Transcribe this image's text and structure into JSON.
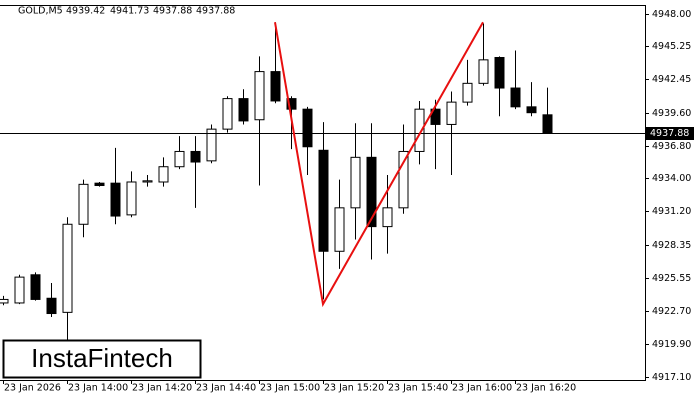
{
  "chart_data": {
    "type": "candlestick",
    "symbol": "GOLD,M5",
    "watermark": "InstaFintech",
    "categories": [
      "23 Jan 2026",
      null,
      null,
      null,
      "23 Jan 14:00",
      null,
      null,
      null,
      "23 Jan 14:20",
      null,
      null,
      null,
      "23 Jan 14:40",
      null,
      null,
      null,
      "23 Jan 15:00",
      null,
      null,
      null,
      "23 Jan 15:20",
      null,
      null,
      null,
      "23 Jan 15:40",
      null,
      null,
      null,
      "23 Jan 16:00",
      null,
      null,
      null,
      "23 Jan 16:20",
      null,
      null
    ],
    "open": [
      4923.4,
      4923.4,
      4925.8,
      4923.8,
      4922.6,
      4930.1,
      4933.6,
      4933.6,
      4930.9,
      4933.7,
      4933.7,
      4935.0,
      4936.3,
      4935.5,
      4938.2,
      4940.8,
      4939.0,
      4943.1,
      4940.8,
      4939.9,
      4936.4,
      4927.8,
      4931.5,
      4935.8,
      4929.9,
      4931.5,
      4936.3,
      4939.9,
      4938.6,
      4940.5,
      4942.1,
      4944.3,
      4941.7,
      4940.1,
      4939.42
    ],
    "high": [
      4924.0,
      4925.8,
      4926.0,
      4925.1,
      4930.7,
      4933.9,
      4933.7,
      4936.6,
      4934.6,
      4934.3,
      4935.8,
      4937.6,
      4937.6,
      4938.6,
      4941.0,
      4941.6,
      4944.4,
      4947.3,
      4941.0,
      4940.1,
      4938.8,
      4933.9,
      4938.7,
      4938.7,
      4934.3,
      4938.6,
      4940.6,
      4940.7,
      4941.4,
      4944.1,
      4947.2,
      4944.4,
      4944.9,
      4942.2,
      4941.73
    ],
    "low": [
      4923.2,
      4923.3,
      4923.6,
      4922.2,
      4919.6,
      4929.0,
      4933.3,
      4930.1,
      4930.7,
      4933.3,
      4933.3,
      4934.8,
      4931.5,
      4935.3,
      4937.9,
      4938.6,
      4933.4,
      4940.4,
      4936.5,
      4934.3,
      4923.7,
      4926.3,
      4928.8,
      4927.1,
      4927.6,
      4931.0,
      4935.2,
      4934.8,
      4934.3,
      4940.2,
      4941.9,
      4939.3,
      4939.9,
      4939.3,
      4937.88
    ],
    "close": [
      4923.7,
      4925.6,
      4923.7,
      4922.5,
      4930.1,
      4933.5,
      4933.4,
      4930.8,
      4933.7,
      4933.8,
      4935.0,
      4936.3,
      4935.4,
      4938.2,
      4940.8,
      4938.9,
      4943.1,
      4940.6,
      4939.9,
      4936.7,
      4927.8,
      4931.5,
      4935.8,
      4929.9,
      4931.5,
      4936.3,
      4939.9,
      4938.6,
      4940.5,
      4942.1,
      4944.1,
      4941.7,
      4940.1,
      4939.6,
      4937.88
    ],
    "up_color": "#ffffff",
    "down_color": "#000000",
    "ylim": [
      4916.84,
      4948.77
    ],
    "yticks": [
      {
        "value": 4948.0,
        "label": "4948.00"
      },
      {
        "value": 4945.25,
        "label": "4945.25"
      },
      {
        "value": 4942.45,
        "label": "4942.45"
      },
      {
        "value": 4939.6,
        "label": "4939.60"
      },
      {
        "value": 4936.8,
        "label": "4936.80"
      },
      {
        "value": 4934.0,
        "label": "4934.00"
      },
      {
        "value": 4931.2,
        "label": "4931.20"
      },
      {
        "value": 4928.35,
        "label": "4928.35"
      },
      {
        "value": 4925.55,
        "label": "4925.55"
      },
      {
        "value": 4922.7,
        "label": "4922.70"
      },
      {
        "value": 4919.9,
        "label": "4919.90"
      },
      {
        "value": 4917.1,
        "label": "4917.10"
      }
    ],
    "overlay": {
      "color": "#e81010",
      "x": [
        17,
        20,
        30
      ],
      "y": [
        4947.3,
        4923.3,
        4947.3
      ]
    }
  }
}
